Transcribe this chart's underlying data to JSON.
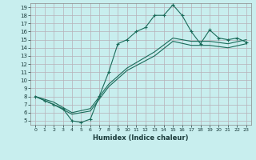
{
  "xlabel": "Humidex (Indice chaleur)",
  "bg_color": "#c8eeee",
  "grid_color": "#b8b0b8",
  "line_color": "#1a6b5a",
  "xlim": [
    -0.5,
    23.5
  ],
  "ylim": [
    4.5,
    19.5
  ],
  "xticks": [
    0,
    1,
    2,
    3,
    4,
    5,
    6,
    7,
    8,
    9,
    10,
    11,
    12,
    13,
    14,
    15,
    16,
    17,
    18,
    19,
    20,
    21,
    22,
    23
  ],
  "yticks": [
    5,
    6,
    7,
    8,
    9,
    10,
    11,
    12,
    13,
    14,
    15,
    16,
    17,
    18,
    19
  ],
  "line1_x": [
    0,
    1,
    2,
    3,
    4,
    5,
    6,
    7,
    8,
    9,
    10,
    11,
    12,
    13,
    14,
    15,
    16,
    17,
    18,
    19,
    20,
    21,
    22,
    23
  ],
  "line1_y": [
    8.0,
    7.5,
    7.0,
    6.5,
    5.0,
    4.8,
    5.2,
    8.1,
    11.0,
    14.5,
    15.0,
    16.0,
    16.5,
    18.0,
    18.0,
    19.3,
    18.0,
    16.0,
    14.5,
    16.2,
    15.2,
    15.0,
    15.2,
    14.7
  ],
  "line2_x": [
    0,
    2,
    4,
    6,
    8,
    10,
    13,
    15,
    17,
    19,
    21,
    23
  ],
  "line2_y": [
    8.0,
    7.3,
    6.0,
    6.5,
    9.5,
    11.5,
    13.5,
    15.2,
    14.8,
    14.8,
    14.5,
    15.0
  ],
  "line3_x": [
    0,
    2,
    4,
    6,
    8,
    10,
    13,
    15,
    17,
    19,
    21,
    23
  ],
  "line3_y": [
    8.0,
    7.0,
    5.8,
    6.2,
    9.2,
    11.2,
    13.0,
    14.8,
    14.3,
    14.3,
    14.0,
    14.5
  ]
}
